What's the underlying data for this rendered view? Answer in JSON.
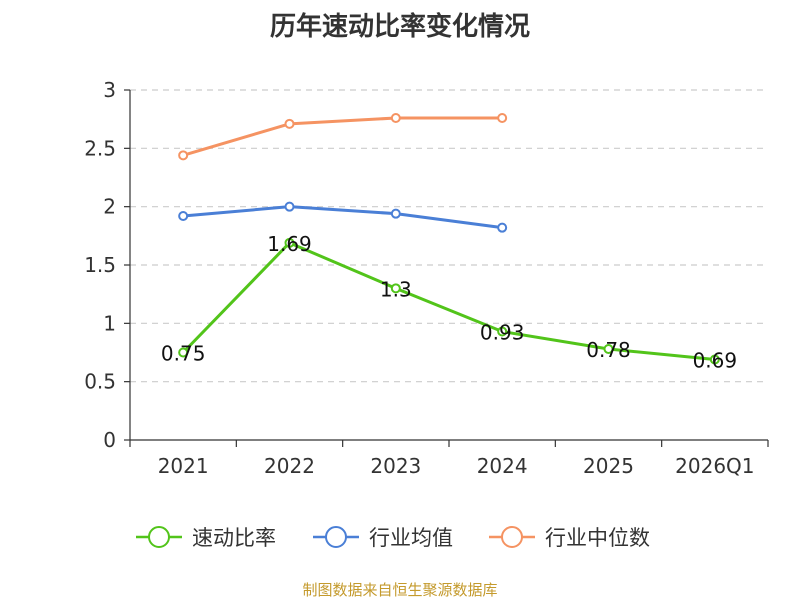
{
  "chart_data": {
    "type": "line",
    "title": "历年速动比率变化情况",
    "categories": [
      "2021",
      "2022",
      "2023",
      "2024",
      "2025",
      "2026Q1"
    ],
    "ylim": [
      0,
      3
    ],
    "yticks": [
      "0",
      "0.5",
      "1",
      "1.5",
      "2",
      "2.5",
      "3"
    ],
    "grid": true,
    "legend_position": "bottom",
    "series": [
      {
        "name": "速动比率",
        "values": [
          0.75,
          1.69,
          1.3,
          0.93,
          0.78,
          0.69
        ],
        "labels": [
          "0.75",
          "1.69",
          "1.3",
          "0.93",
          "0.78",
          "0.69"
        ],
        "color": "#52c41a"
      },
      {
        "name": "行业均值",
        "values": [
          1.92,
          2.0,
          1.94,
          1.82,
          null,
          null
        ],
        "color": "#4a7fd6"
      },
      {
        "name": "行业中位数",
        "values": [
          2.44,
          2.71,
          2.76,
          2.76,
          null,
          null
        ],
        "color": "#f59362"
      }
    ]
  },
  "footer": {
    "source": "制图数据来自恒生聚源数据库"
  }
}
